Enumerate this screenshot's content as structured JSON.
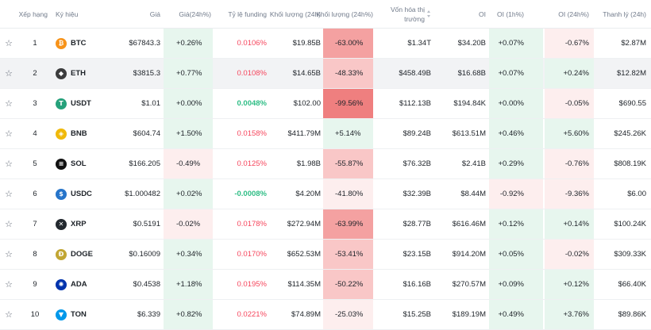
{
  "headers": {
    "rank": "Xếp hạng",
    "symbol": "Ký hiệu",
    "price": "Giá",
    "price_change": "Giá(24h%)",
    "funding": "Tỷ lệ funding",
    "volume": "Khối lượng (24h)",
    "volume_change": "Khối lượng (24h%)",
    "mcap": "Vốn hóa thị trường",
    "oi": "OI",
    "oi_1h": "OI (1h%)",
    "oi_24h": "OI (24h%)",
    "liq": "Thanh lý (24h)"
  },
  "colors": {
    "pos_bg": "#e7f6ee",
    "neg_bg_light": "#fdeeee",
    "neg_bg_mid": "#f9c7c7",
    "neg_bg_strong": "#f4a1a1",
    "neg_bg_deep": "#ef7f7f"
  },
  "rows": [
    {
      "rank": "1",
      "symbol": "BTC",
      "icon": "bitcoin-icon",
      "icon_color": "#f7931a",
      "glyph": "₿",
      "price": "$67843.3",
      "price_change": "+0.26%",
      "funding": "0.0106%",
      "volume": "$19.85B",
      "volume_change": "-63.00%",
      "mcap": "$1.34T",
      "oi": "$34.20B",
      "oi_1h": "+0.07%",
      "oi_24h": "-0.67%",
      "liq": "$2.87M"
    },
    {
      "rank": "2",
      "symbol": "ETH",
      "icon": "ethereum-icon",
      "icon_color": "#3c3c3d",
      "glyph": "◆",
      "price": "$3815.3",
      "price_change": "+0.77%",
      "funding": "0.0108%",
      "volume": "$14.65B",
      "volume_change": "-48.33%",
      "mcap": "$458.49B",
      "oi": "$16.68B",
      "oi_1h": "+0.07%",
      "oi_24h": "+0.24%",
      "liq": "$12.82M"
    },
    {
      "rank": "3",
      "symbol": "USDT",
      "icon": "tether-icon",
      "icon_color": "#26a17b",
      "glyph": "T",
      "price": "$1.01",
      "price_change": "+0.00%",
      "funding": "0.0048%",
      "volume": "$102.00",
      "volume_change": "-99.56%",
      "mcap": "$112.13B",
      "oi": "$194.84K",
      "oi_1h": "+0.00%",
      "oi_24h": "-0.05%",
      "liq": "$690.55"
    },
    {
      "rank": "4",
      "symbol": "BNB",
      "icon": "bnb-icon",
      "icon_color": "#f0b90b",
      "glyph": "◈",
      "price": "$604.74",
      "price_change": "+1.50%",
      "funding": "0.0158%",
      "volume": "$411.79M",
      "volume_change": "+5.14%",
      "mcap": "$89.24B",
      "oi": "$613.51M",
      "oi_1h": "+0.46%",
      "oi_24h": "+5.60%",
      "liq": "$245.26K"
    },
    {
      "rank": "5",
      "symbol": "SOL",
      "icon": "solana-icon",
      "icon_color": "#111111",
      "glyph": "≡",
      "price": "$166.205",
      "price_change": "-0.49%",
      "funding": "0.0125%",
      "volume": "$1.98B",
      "volume_change": "-55.87%",
      "mcap": "$76.32B",
      "oi": "$2.41B",
      "oi_1h": "+0.29%",
      "oi_24h": "-0.76%",
      "liq": "$808.19K"
    },
    {
      "rank": "6",
      "symbol": "USDC",
      "icon": "usdc-icon",
      "icon_color": "#2775ca",
      "glyph": "$",
      "price": "$1.000482",
      "price_change": "+0.02%",
      "funding": "-0.0008%",
      "volume": "$4.20M",
      "volume_change": "-41.80%",
      "mcap": "$32.39B",
      "oi": "$8.44M",
      "oi_1h": "-0.92%",
      "oi_24h": "-9.36%",
      "liq": "$6.00"
    },
    {
      "rank": "7",
      "symbol": "XRP",
      "icon": "xrp-icon",
      "icon_color": "#23292f",
      "glyph": "✕",
      "price": "$0.5191",
      "price_change": "-0.02%",
      "funding": "0.0178%",
      "volume": "$272.94M",
      "volume_change": "-63.99%",
      "mcap": "$28.77B",
      "oi": "$616.46M",
      "oi_1h": "+0.12%",
      "oi_24h": "+0.14%",
      "liq": "$100.24K"
    },
    {
      "rank": "8",
      "symbol": "DOGE",
      "icon": "dogecoin-icon",
      "icon_color": "#c2a633",
      "glyph": "Ð",
      "price": "$0.16009",
      "price_change": "+0.34%",
      "funding": "0.0170%",
      "volume": "$652.53M",
      "volume_change": "-53.41%",
      "mcap": "$23.15B",
      "oi": "$914.20M",
      "oi_1h": "+0.05%",
      "oi_24h": "-0.02%",
      "liq": "$309.33K"
    },
    {
      "rank": "9",
      "symbol": "ADA",
      "icon": "cardano-icon",
      "icon_color": "#0033ad",
      "glyph": "✺",
      "price": "$0.4538",
      "price_change": "+1.18%",
      "funding": "0.0195%",
      "volume": "$114.35M",
      "volume_change": "-50.22%",
      "mcap": "$16.16B",
      "oi": "$270.57M",
      "oi_1h": "+0.09%",
      "oi_24h": "+0.12%",
      "liq": "$66.40K"
    },
    {
      "rank": "10",
      "symbol": "TON",
      "icon": "toncoin-icon",
      "icon_color": "#0098ea",
      "glyph": "▼",
      "price": "$6.339",
      "price_change": "+0.82%",
      "funding": "0.0221%",
      "volume": "$74.89M",
      "volume_change": "-25.03%",
      "mcap": "$15.25B",
      "oi": "$189.19M",
      "oi_1h": "+0.49%",
      "oi_24h": "+3.76%",
      "liq": "$89.86K"
    }
  ]
}
